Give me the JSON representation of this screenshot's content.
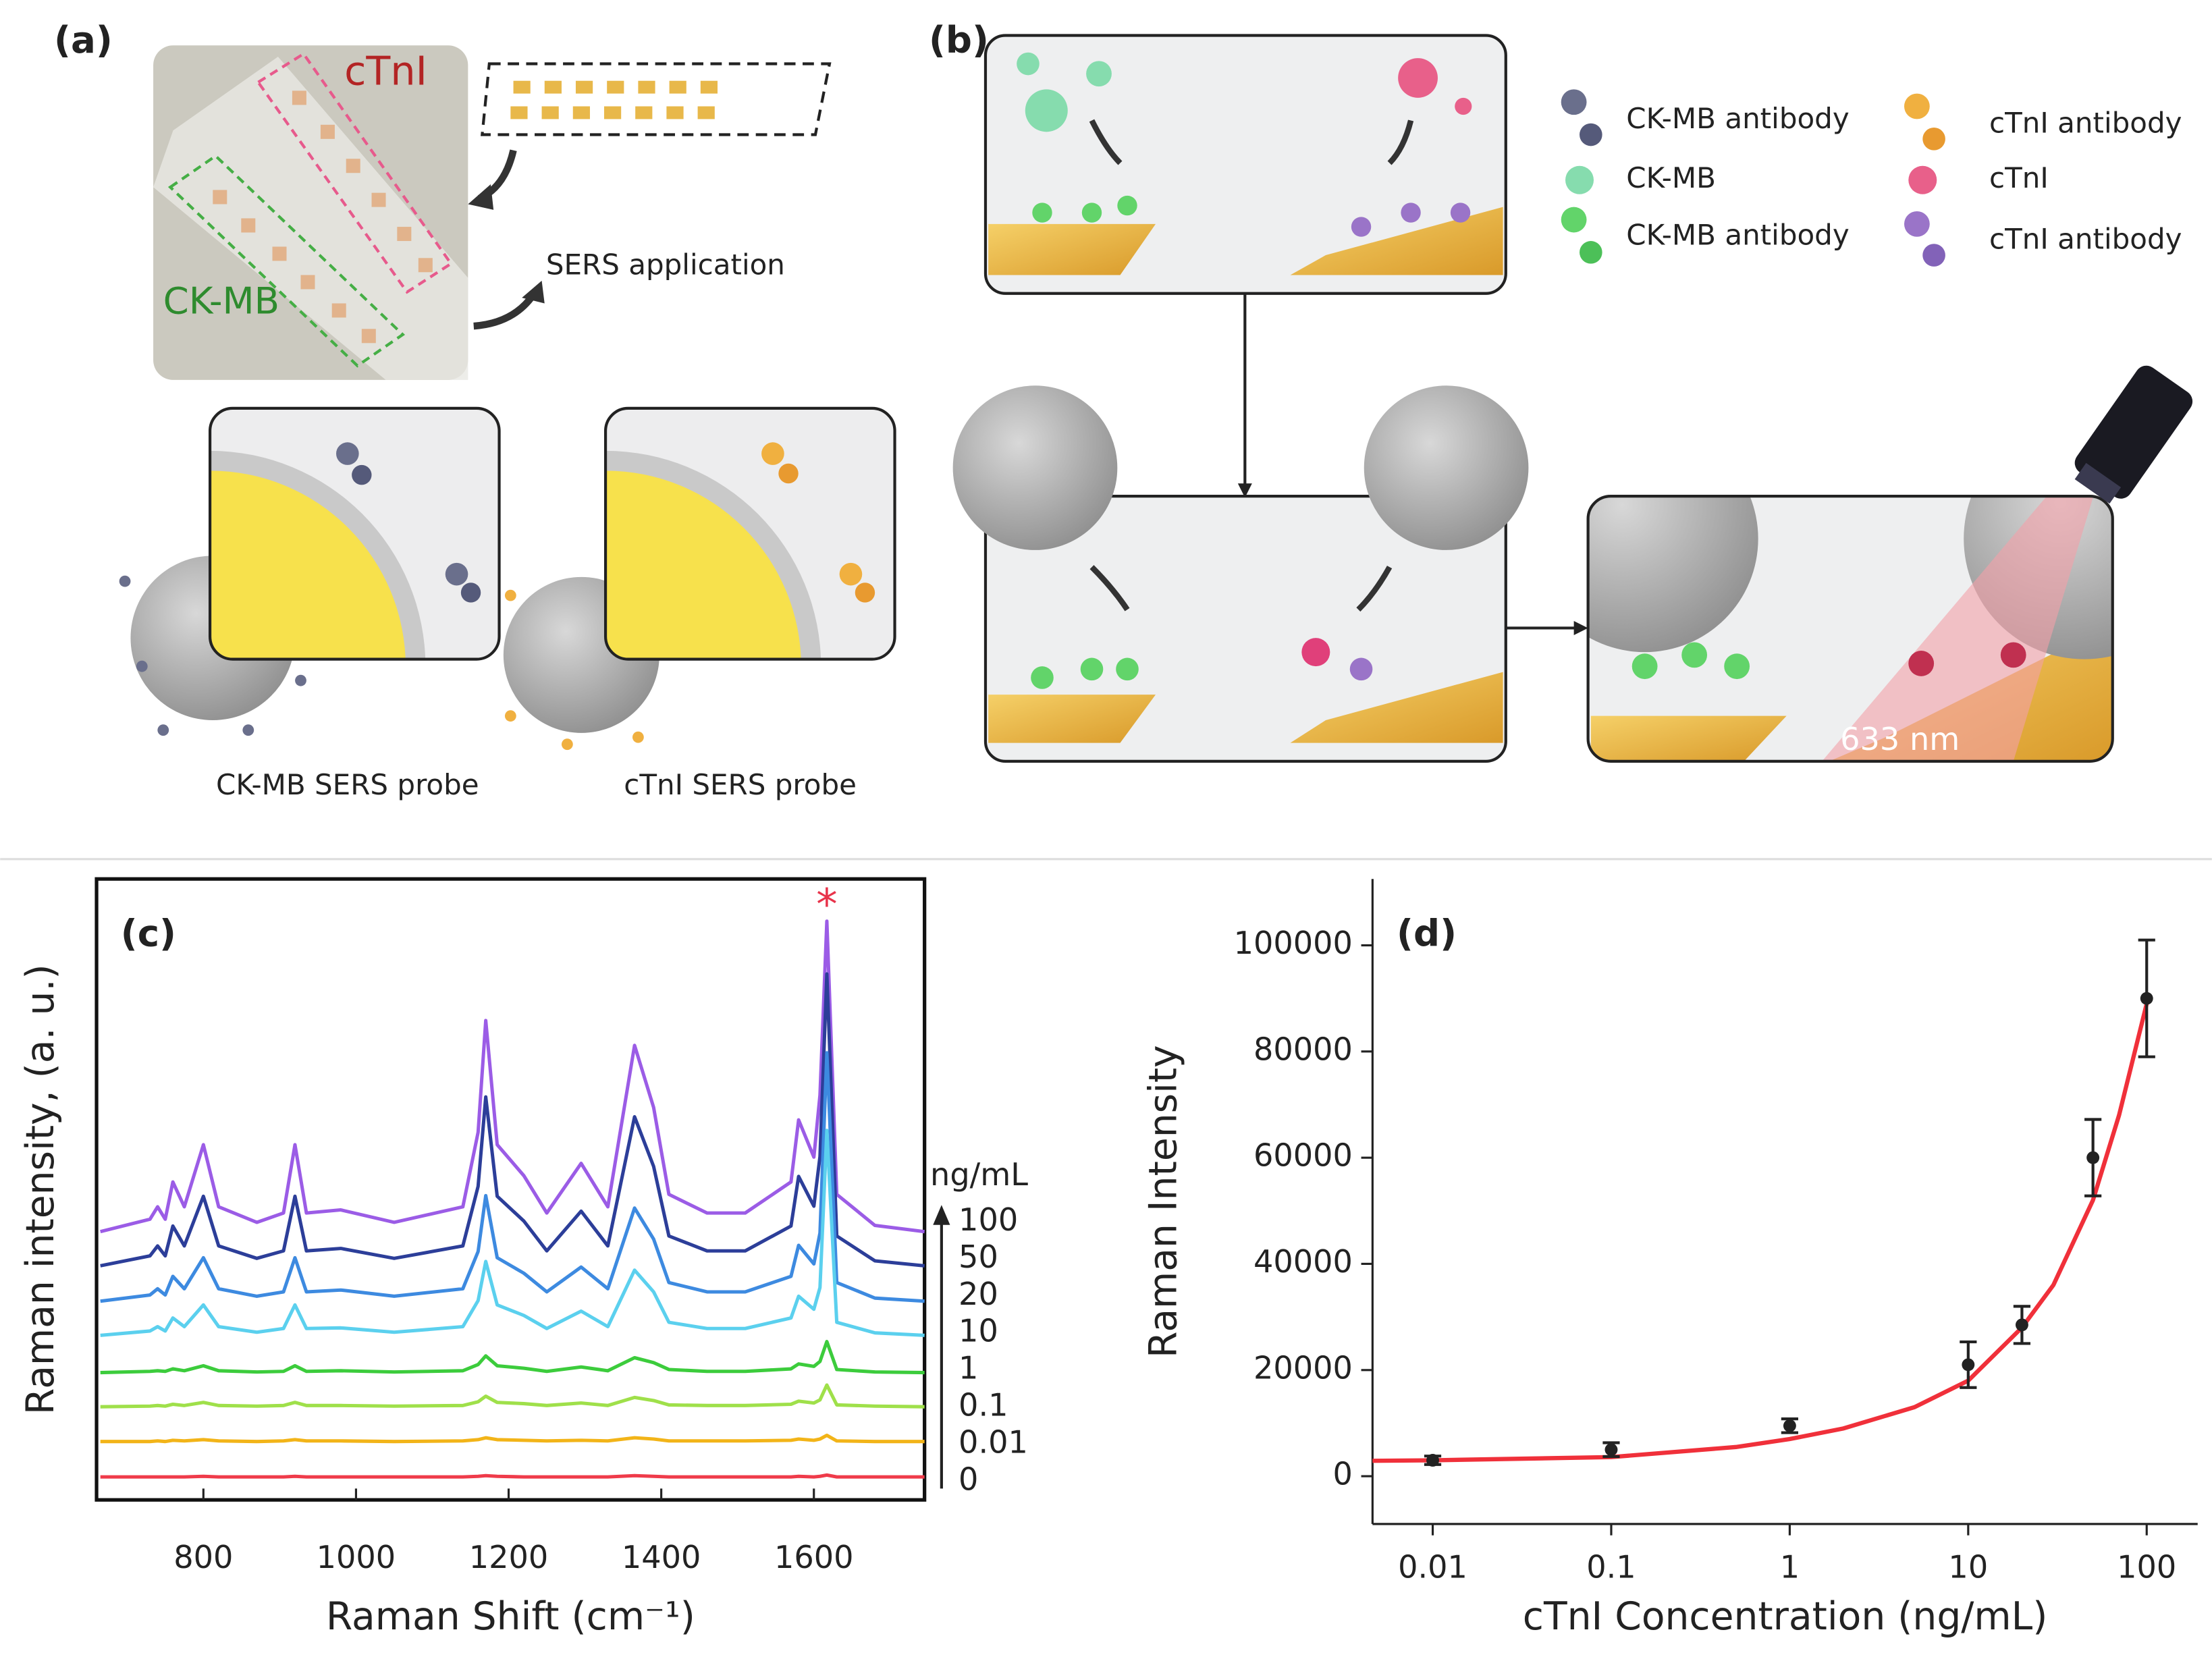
{
  "panel_a": {
    "label": "(a)",
    "chip_top": "cTnI",
    "chip_bottom": "CK-MB",
    "arrow_text": "SERS application",
    "probe_left": "CK-MB SERS probe",
    "probe_right": "cTnI SERS probe"
  },
  "panel_b": {
    "label": "(b)",
    "legend": [
      "CK-MB antibody",
      "CK-MB",
      "CK-MB antibody",
      "cTnI antibody",
      "cTnI",
      "cTnI antibody"
    ],
    "laser": "633 nm"
  },
  "chart_data": [
    {
      "type": "line",
      "panel_label": "(c)",
      "x_label": "Raman Shift (cm⁻¹)",
      "y_label": "Raman intensity, (a. u.)",
      "frame": true,
      "xlim": [
        660,
        1745
      ],
      "xticks": [
        800,
        1000,
        1200,
        1400,
        1600
      ],
      "ylim": [
        0,
        100
      ],
      "x": [
        665,
        730,
        740,
        750,
        760,
        775,
        800,
        820,
        870,
        905,
        920,
        935,
        980,
        1050,
        1140,
        1160,
        1170,
        1185,
        1220,
        1250,
        1295,
        1330,
        1365,
        1390,
        1410,
        1460,
        1510,
        1570,
        1580,
        1600,
        1608,
        1617,
        1630,
        1680,
        1745
      ],
      "legend_title": "ng/mL",
      "annotations": [
        {
          "text": "*",
          "x": 1617,
          "color": "#e8334a"
        }
      ],
      "series": [
        {
          "name": "100",
          "color": "#9b5ce6",
          "values": [
            43.2,
            45.2,
            47.2,
            45.2,
            51.2,
            47.2,
            57.2,
            47.2,
            44.7,
            46.2,
            57.2,
            46.2,
            46.7,
            44.7,
            47.2,
            59.2,
            77.2,
            57.2,
            52.2,
            46.2,
            54.2,
            47.2,
            73.2,
            63.2,
            49.2,
            46.2,
            46.2,
            51.2,
            61.2,
            55.2,
            65.2,
            93.2,
            49.2,
            44.2,
            43.2
          ]
        },
        {
          "name": "50",
          "color": "#2c3e99",
          "values": [
            37.7,
            39.3,
            40.9,
            39.3,
            44.1,
            40.9,
            48.9,
            40.9,
            38.9,
            40.1,
            48.9,
            40.1,
            40.5,
            38.9,
            40.9,
            50.5,
            64.9,
            48.9,
            44.9,
            40.1,
            46.5,
            40.9,
            61.7,
            53.7,
            42.5,
            40.1,
            40.1,
            44.1,
            52.1,
            47.3,
            55.3,
            84.7,
            42.5,
            38.5,
            37.7
          ]
        },
        {
          "name": "20",
          "color": "#3d8ae0",
          "values": [
            32,
            33,
            34,
            33,
            36,
            34,
            39,
            34,
            32.8,
            33.5,
            39,
            33.5,
            33.8,
            32.8,
            34,
            40,
            49,
            39,
            36.5,
            33.5,
            37.5,
            34,
            47,
            42,
            35,
            33.5,
            33.5,
            36,
            41,
            38,
            43,
            72,
            35,
            32.5,
            32
          ]
        },
        {
          "name": "10",
          "color": "#5bd0ee",
          "values": [
            26.5,
            27.2,
            27.9,
            27.2,
            29.3,
            27.9,
            31.4,
            27.9,
            27,
            27.6,
            31.4,
            27.6,
            27.7,
            27,
            27.9,
            32.1,
            38.4,
            31.4,
            29.7,
            27.6,
            30.4,
            27.9,
            37,
            33.5,
            28.6,
            27.6,
            27.6,
            29.3,
            32.8,
            30.7,
            34.2,
            59.5,
            28.6,
            26.9,
            26.5
          ]
        },
        {
          "name": "1",
          "color": "#3ccc3c",
          "values": [
            20.5,
            20.7,
            20.8,
            20.7,
            21.1,
            20.8,
            21.6,
            20.8,
            20.6,
            20.7,
            21.6,
            20.7,
            20.8,
            20.6,
            20.8,
            21.8,
            23.2,
            21.6,
            21.2,
            20.7,
            21.4,
            20.8,
            22.9,
            22.1,
            21,
            20.7,
            20.7,
            21.1,
            21.9,
            21.5,
            22.3,
            25.5,
            21,
            20.6,
            20.5
          ]
        },
        {
          "name": "0.1",
          "color": "#9fe04a",
          "values": [
            15,
            15.1,
            15.2,
            15.1,
            15.4,
            15.2,
            15.7,
            15.2,
            15.1,
            15.2,
            15.7,
            15.2,
            15.2,
            15.1,
            15.2,
            15.8,
            16.7,
            15.7,
            15.5,
            15.2,
            15.6,
            15.2,
            16.5,
            16,
            15.3,
            15.2,
            15.2,
            15.4,
            15.9,
            15.6,
            16.1,
            18.5,
            15.3,
            15.1,
            15
          ]
        },
        {
          "name": "0.01",
          "color": "#f2b418",
          "values": [
            9.4,
            9.4,
            9.5,
            9.4,
            9.6,
            9.5,
            9.7,
            9.5,
            9.4,
            9.5,
            9.7,
            9.5,
            9.5,
            9.4,
            9.5,
            9.7,
            10,
            9.7,
            9.6,
            9.5,
            9.6,
            9.5,
            10,
            9.8,
            9.5,
            9.5,
            9.5,
            9.6,
            9.8,
            9.6,
            9.8,
            10.4,
            9.5,
            9.4,
            9.4
          ]
        },
        {
          "name": "0",
          "color": "#ef3b4a",
          "values": [
            3.7,
            3.7,
            3.7,
            3.7,
            3.7,
            3.7,
            3.8,
            3.7,
            3.7,
            3.7,
            3.8,
            3.7,
            3.7,
            3.7,
            3.7,
            3.8,
            3.9,
            3.8,
            3.7,
            3.7,
            3.7,
            3.7,
            3.9,
            3.8,
            3.7,
            3.7,
            3.7,
            3.7,
            3.8,
            3.7,
            3.8,
            4,
            3.7,
            3.7,
            3.7
          ]
        }
      ]
    },
    {
      "type": "scatter",
      "panel_label": "(d)",
      "x_label": "cTnI Concentration (ng/mL)",
      "y_label": "Raman Intensity",
      "frame": false,
      "log_x": true,
      "xlim": [
        0.0046,
        193
      ],
      "xticks": [
        0.01,
        0.1,
        1,
        10,
        100
      ],
      "ylim": [
        -9000,
        112500
      ],
      "yticks": [
        0,
        20000,
        40000,
        60000,
        80000,
        100000
      ],
      "x": [
        0.01,
        0.1,
        1,
        10,
        20,
        50,
        100
      ],
      "values": [
        3000,
        5000,
        9500,
        21000,
        28500,
        60000,
        90000
      ],
      "errors": [
        800,
        1300,
        1300,
        4300,
        3500,
        7200,
        11000
      ],
      "color": "#222222",
      "fit": {
        "color": "#f0303a",
        "x": [
          0.0046,
          0.01,
          0.1,
          0.5,
          1,
          2,
          5,
          10,
          20,
          30,
          50,
          70,
          100
        ],
        "values": [
          2900,
          3000,
          3600,
          5500,
          7000,
          9000,
          13000,
          18000,
          28000,
          36000,
          52000,
          68000,
          89000
        ]
      }
    }
  ]
}
